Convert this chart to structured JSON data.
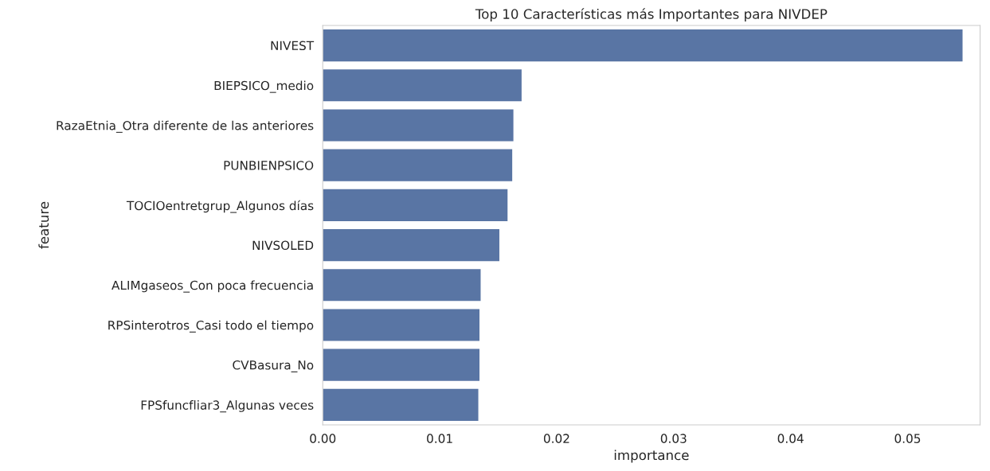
{
  "chart_data": {
    "type": "bar",
    "orientation": "horizontal",
    "title": "Top 10 Características más Importantes para NIVDEP",
    "xlabel": "importance",
    "ylabel": "feature",
    "categories": [
      "NIVEST",
      "BIEPSICO_medio",
      "RazaEtnia_Otra diferente de las anteriores",
      "PUNBIENPSICO",
      "TOCIOentretgrup_Algunos días",
      "NIVSOLED",
      "ALIMgaseos_Con poca frecuencia",
      "RPSinterotros_Casi todo el tiempo",
      "CVBasura_No",
      "FPSfuncfliar3_Algunas veces"
    ],
    "values": [
      0.0547,
      0.017,
      0.0163,
      0.0162,
      0.0158,
      0.0151,
      0.0135,
      0.0134,
      0.0134,
      0.0133
    ],
    "color": "#5975a4",
    "xlim": [
      0,
      0.0562
    ],
    "xticks": [
      {
        "value": 0,
        "label": "0.00"
      },
      {
        "value": 0.01,
        "label": "0.01"
      },
      {
        "value": 0.02,
        "label": "0.02"
      },
      {
        "value": 0.03,
        "label": "0.03"
      },
      {
        "value": 0.04,
        "label": "0.04"
      },
      {
        "value": 0.05,
        "label": "0.05"
      }
    ],
    "grid": false
  }
}
